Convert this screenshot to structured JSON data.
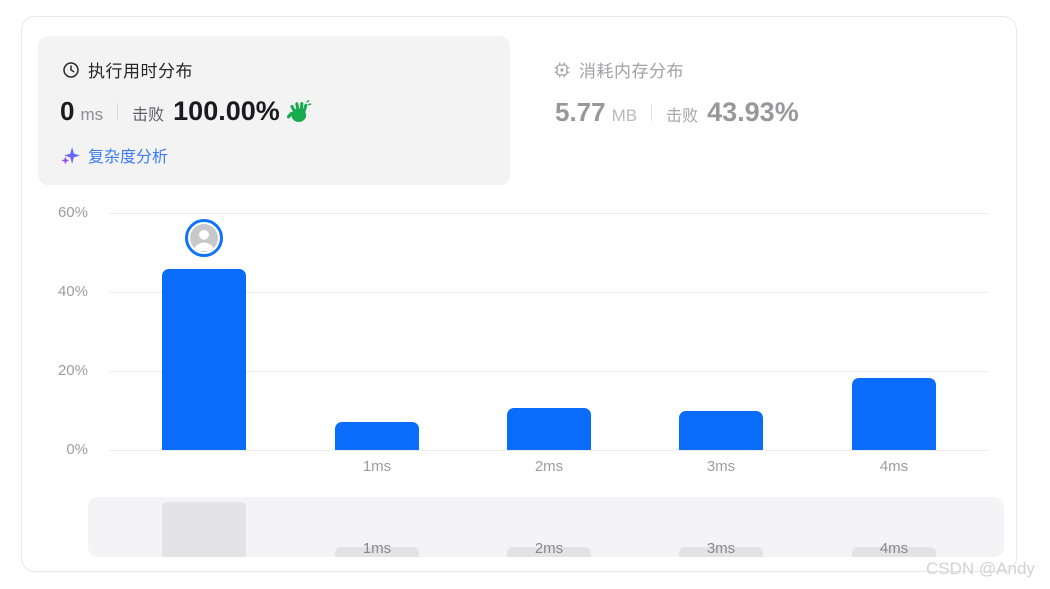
{
  "runtime_card": {
    "title": "执行用时分布",
    "value": "0",
    "unit": "ms",
    "beats_label": "击败",
    "beats_value": "100.00%",
    "complexity_link": "复杂度分析"
  },
  "memory_card": {
    "title": "消耗内存分布",
    "value": "5.77",
    "unit": "MB",
    "beats_label": "击败",
    "beats_value": "43.93%"
  },
  "chart_data": {
    "type": "bar",
    "title": "执行用时分布",
    "categories": [
      "0ms",
      "1ms",
      "2ms",
      "3ms",
      "4ms"
    ],
    "values": [
      45.8,
      7.2,
      10.7,
      9.9,
      18.3
    ],
    "x_tick_labels": [
      "",
      "1ms",
      "2ms",
      "3ms",
      "4ms"
    ],
    "y_tick_values": [
      0,
      20,
      40,
      60
    ],
    "y_tick_labels": [
      "0%",
      "20%",
      "40%",
      "60%"
    ],
    "ylim": [
      0,
      60
    ],
    "xlabel": "",
    "ylabel": "",
    "grid": true,
    "legend_position": "none",
    "bar_color": "#0a6cfa",
    "user_marker_category": "0ms"
  },
  "mini_chart": {
    "labels": [
      "1ms",
      "2ms",
      "3ms",
      "4ms"
    ]
  },
  "watermark": "CSDN @Andy",
  "colors": {
    "bar_blue": "#0a6cfa",
    "link_blue": "#3b7bf7",
    "hand_green": "#17ab4d",
    "card_bg": "#f3f3f4",
    "muted_text": "#9d9da0"
  }
}
